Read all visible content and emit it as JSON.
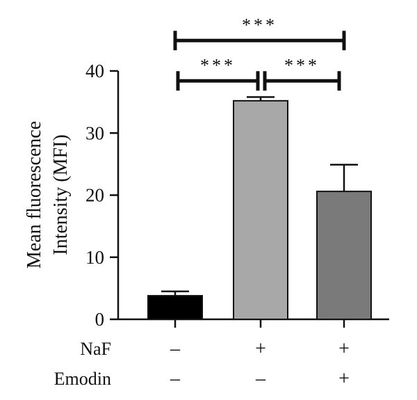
{
  "chart_data": {
    "type": "bar",
    "ylabel_lines": [
      "Mean fluorescence",
      "Intensity (MFI)"
    ],
    "ylim": [
      0,
      40
    ],
    "yticks": [
      0,
      10,
      20,
      30,
      40
    ],
    "grid": false,
    "groups": [
      {
        "values": [
          3.8
        ],
        "error": 0.7,
        "color": "#000000"
      },
      {
        "values": [
          35.2
        ],
        "error": 0.6,
        "color": "#a8a8a8"
      },
      {
        "values": [
          20.6
        ],
        "error": 4.3,
        "color": "#7a7a7a"
      }
    ],
    "condition_rows": [
      {
        "label": "NaF",
        "marks": [
          "–",
          "+",
          "+"
        ]
      },
      {
        "label": "Emodin",
        "marks": [
          "–",
          "–",
          "+"
        ]
      }
    ],
    "significance": [
      {
        "from": 0,
        "to": 2,
        "label": "***",
        "level": 44.9
      },
      {
        "from": 0,
        "to": 1,
        "label": "***",
        "level": 38.4
      },
      {
        "from": 1,
        "to": 2,
        "label": "***",
        "level": 38.4
      }
    ]
  }
}
